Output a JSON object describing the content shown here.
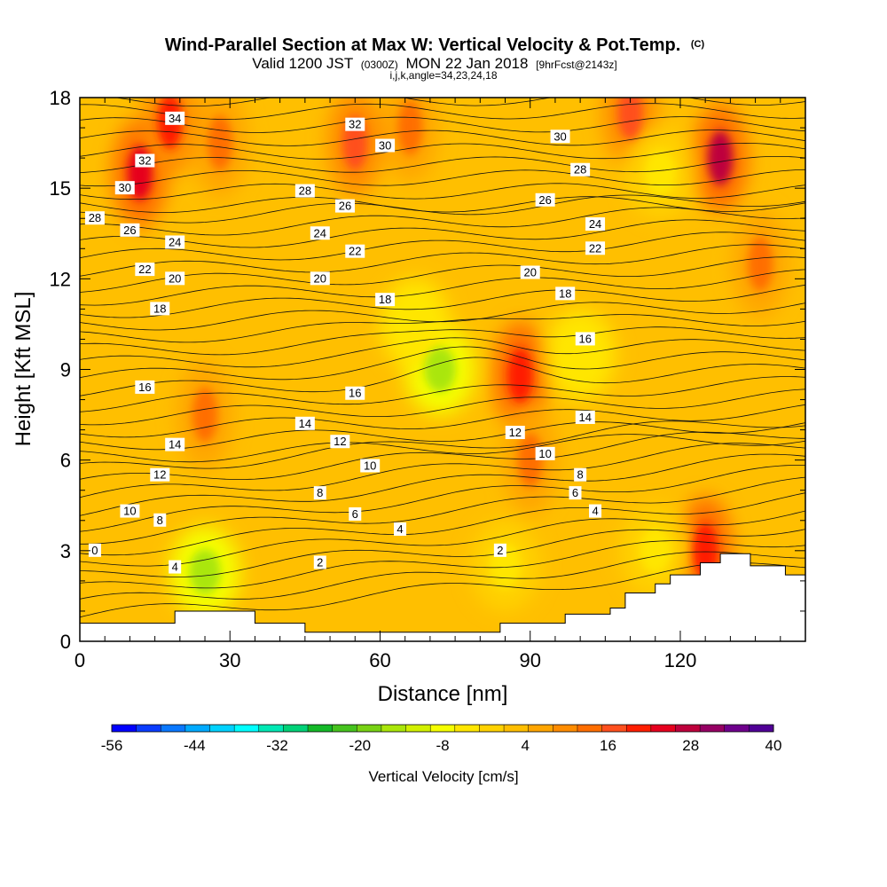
{
  "chart_data": {
    "type": "heatmap",
    "title": "Wind-Parallel Section at Max W: Vertical Velocity & Pot.Temp.",
    "title_mark": "(C)",
    "subtitle_valid": "Valid 1200 JST",
    "subtitle_utc": "(0300Z)",
    "subtitle_date": "MON 22 Jan 2018",
    "subtitle_fcst": "[9hrFcst@2143z]",
    "subtitle_indices": "i,j,k,angle=34,23,24,18",
    "xlabel": "Distance [nm]",
    "ylabel": "Height [Kft MSL]",
    "xlim": [
      0,
      145
    ],
    "ylim": [
      0,
      18
    ],
    "x_ticks": [
      0,
      30,
      60,
      90,
      120
    ],
    "y_ticks": [
      0,
      3,
      6,
      9,
      12,
      15,
      18
    ],
    "colorbar": {
      "label": "Vertical Velocity [cm/s]",
      "tick_labels": [
        "-56",
        "-44",
        "-32",
        "-20",
        "-8",
        "4",
        "16",
        "28",
        "40"
      ],
      "range": [
        -56,
        40
      ],
      "colors": [
        "#0000ff",
        "#0a3cff",
        "#0a78ff",
        "#00aaff",
        "#00d2ff",
        "#00ffff",
        "#00e8b4",
        "#00d278",
        "#14b928",
        "#46c31e",
        "#78d214",
        "#aae60a",
        "#d2f000",
        "#f5ff00",
        "#ffe600",
        "#ffd200",
        "#ffbe00",
        "#ffa500",
        "#ff8c00",
        "#ff6e00",
        "#ff501e",
        "#ff1e00",
        "#e6001e",
        "#be003c",
        "#960064",
        "#6e008c",
        "#500096"
      ]
    },
    "velocity_features": [
      {
        "x": 12,
        "y": 15.5,
        "w": 24,
        "kind": "updraft"
      },
      {
        "x": 18,
        "y": 17.2,
        "w": 20,
        "kind": "updraft"
      },
      {
        "x": 28,
        "y": 16.5,
        "w": 14,
        "kind": "updraft"
      },
      {
        "x": 55,
        "y": 16.5,
        "w": 18,
        "kind": "updraft"
      },
      {
        "x": 66,
        "y": 17.0,
        "w": 14,
        "kind": "updraft"
      },
      {
        "x": 110,
        "y": 17.5,
        "w": 16,
        "kind": "updraft"
      },
      {
        "x": 128,
        "y": 16.0,
        "w": 26,
        "kind": "updraft"
      },
      {
        "x": 136,
        "y": 12.5,
        "w": 14,
        "kind": "updraft"
      },
      {
        "x": 25,
        "y": 7.5,
        "w": 14,
        "kind": "updraft"
      },
      {
        "x": 88,
        "y": 8.8,
        "w": 22,
        "kind": "updraft"
      },
      {
        "x": 90,
        "y": 6.0,
        "w": 14,
        "kind": "updraft"
      },
      {
        "x": 125,
        "y": 3.0,
        "w": 22,
        "kind": "updraft"
      },
      {
        "x": 72,
        "y": 9.0,
        "w": -16,
        "kind": "downdraft"
      },
      {
        "x": 67,
        "y": 10.5,
        "w": -6,
        "kind": "downdraft"
      },
      {
        "x": 100,
        "y": 9.5,
        "w": -6,
        "kind": "downdraft"
      },
      {
        "x": 116,
        "y": 15.5,
        "w": -4,
        "kind": "downdraft"
      },
      {
        "x": 25,
        "y": 2.3,
        "w": -14,
        "kind": "downdraft"
      },
      {
        "x": 115,
        "y": 3.0,
        "w": -3,
        "kind": "downdraft"
      },
      {
        "x": 85,
        "y": 2.5,
        "w": -3,
        "kind": "downdraft"
      }
    ],
    "potential_temperature_contours": [
      {
        "value": "0",
        "x": 3,
        "y": 3.0
      },
      {
        "value": "2",
        "x": 48,
        "y": 2.6
      },
      {
        "value": "2",
        "x": 84,
        "y": 3.0
      },
      {
        "value": "4",
        "x": 19,
        "y": 2.45
      },
      {
        "value": "4",
        "x": 64,
        "y": 3.7
      },
      {
        "value": "4",
        "x": 103,
        "y": 4.3
      },
      {
        "value": "6",
        "x": 55,
        "y": 4.2
      },
      {
        "value": "6",
        "x": 99,
        "y": 4.9
      },
      {
        "value": "8",
        "x": 16,
        "y": 4.0
      },
      {
        "value": "8",
        "x": 48,
        "y": 4.9
      },
      {
        "value": "8",
        "x": 100,
        "y": 5.5
      },
      {
        "value": "10",
        "x": 10,
        "y": 4.3
      },
      {
        "value": "10",
        "x": 58,
        "y": 5.8
      },
      {
        "value": "10",
        "x": 93,
        "y": 6.2
      },
      {
        "value": "12",
        "x": 16,
        "y": 5.5
      },
      {
        "value": "12",
        "x": 52,
        "y": 6.6
      },
      {
        "value": "12",
        "x": 87,
        "y": 6.9
      },
      {
        "value": "14",
        "x": 19,
        "y": 6.5
      },
      {
        "value": "14",
        "x": 45,
        "y": 7.2
      },
      {
        "value": "14",
        "x": 101,
        "y": 7.4
      },
      {
        "value": "16",
        "x": 13,
        "y": 8.4
      },
      {
        "value": "16",
        "x": 55,
        "y": 8.2
      },
      {
        "value": "16",
        "x": 101,
        "y": 10.0
      },
      {
        "value": "18",
        "x": 16,
        "y": 11.0
      },
      {
        "value": "18",
        "x": 61,
        "y": 11.3
      },
      {
        "value": "18",
        "x": 97,
        "y": 11.5
      },
      {
        "value": "20",
        "x": 19,
        "y": 12.0
      },
      {
        "value": "20",
        "x": 48,
        "y": 12.0
      },
      {
        "value": "20",
        "x": 90,
        "y": 12.2
      },
      {
        "value": "22",
        "x": 13,
        "y": 12.3
      },
      {
        "value": "22",
        "x": 55,
        "y": 12.9
      },
      {
        "value": "22",
        "x": 103,
        "y": 13.0
      },
      {
        "value": "24",
        "x": 19,
        "y": 13.2
      },
      {
        "value": "24",
        "x": 48,
        "y": 13.5
      },
      {
        "value": "24",
        "x": 103,
        "y": 13.8
      },
      {
        "value": "26",
        "x": 10,
        "y": 13.6
      },
      {
        "value": "26",
        "x": 53,
        "y": 14.4
      },
      {
        "value": "26",
        "x": 93,
        "y": 14.6
      },
      {
        "value": "28",
        "x": 3,
        "y": 14.0
      },
      {
        "value": "28",
        "x": 45,
        "y": 14.9
      },
      {
        "value": "28",
        "x": 100,
        "y": 15.6
      },
      {
        "value": "30",
        "x": 9,
        "y": 15.0
      },
      {
        "value": "30",
        "x": 61,
        "y": 16.4
      },
      {
        "value": "30",
        "x": 96,
        "y": 16.7
      },
      {
        "value": "32",
        "x": 13,
        "y": 15.9
      },
      {
        "value": "32",
        "x": 55,
        "y": 17.1
      },
      {
        "value": "34",
        "x": 19,
        "y": 17.3
      }
    ],
    "terrain": [
      [
        0,
        0.6
      ],
      [
        19,
        0.6
      ],
      [
        19,
        1.0
      ],
      [
        35,
        1.0
      ],
      [
        35,
        0.6
      ],
      [
        45,
        0.6
      ],
      [
        45,
        0.3
      ],
      [
        84,
        0.3
      ],
      [
        84,
        0.6
      ],
      [
        97,
        0.6
      ],
      [
        97,
        0.9
      ],
      [
        106,
        0.9
      ],
      [
        106,
        1.1
      ],
      [
        109,
        1.1
      ],
      [
        109,
        1.6
      ],
      [
        115,
        1.6
      ],
      [
        115,
        1.9
      ],
      [
        118,
        1.9
      ],
      [
        118,
        2.2
      ],
      [
        124,
        2.2
      ],
      [
        124,
        2.6
      ],
      [
        128,
        2.6
      ],
      [
        128,
        2.9
      ],
      [
        134,
        2.9
      ],
      [
        134,
        2.5
      ],
      [
        141,
        2.5
      ],
      [
        141,
        2.2
      ],
      [
        145,
        2.2
      ]
    ]
  }
}
